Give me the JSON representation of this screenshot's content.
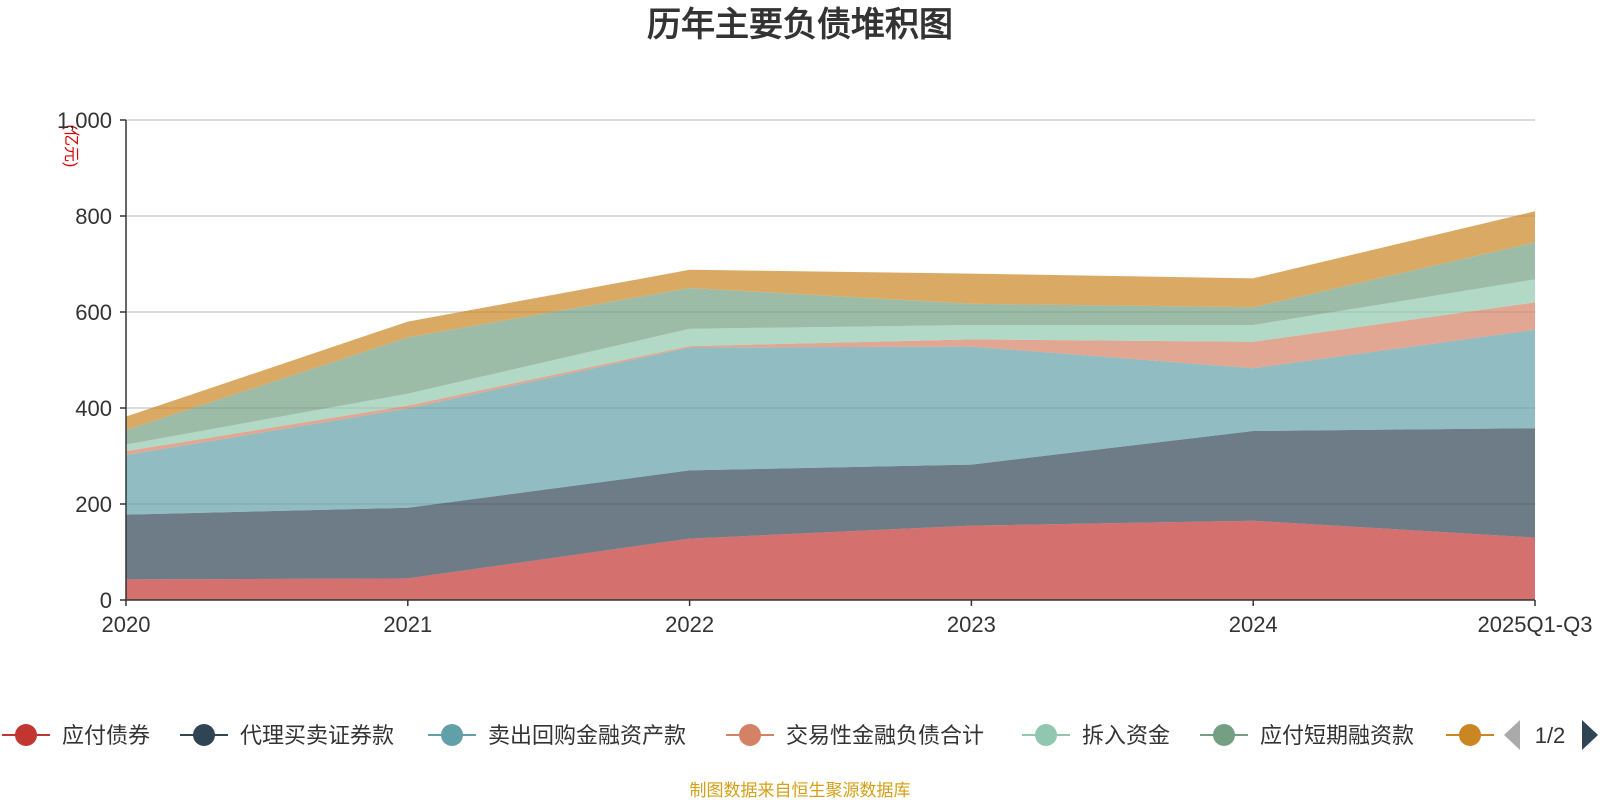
{
  "chart_data": {
    "type": "area",
    "stacked": true,
    "title": "历年主要负债堆积图",
    "ylabel": "(亿元)",
    "xlabel": "",
    "ylim": [
      0,
      1000
    ],
    "yticks": [
      0,
      200,
      400,
      600,
      800,
      1000
    ],
    "ytick_labels": [
      "0",
      "200",
      "400",
      "600",
      "800",
      "1,000"
    ],
    "categories": [
      "2020",
      "2021",
      "2022",
      "2023",
      "2024",
      "2025Q1-Q3"
    ],
    "grid": true,
    "legend_position": "bottom",
    "series": [
      {
        "name": "应付债券",
        "color": "#c23531",
        "values": [
          43,
          45,
          128,
          155,
          165,
          130
        ]
      },
      {
        "name": "代理买卖证券款",
        "color": "#2f4554",
        "values": [
          135,
          147,
          142,
          127,
          187,
          228
        ]
      },
      {
        "name": "卖出回购金融资产款",
        "color": "#61a0a8",
        "values": [
          124,
          207,
          256,
          246,
          131,
          205
        ]
      },
      {
        "name": "交易性金融负债合计",
        "color": "#d48265",
        "values": [
          8,
          6,
          3,
          15,
          55,
          57
        ]
      },
      {
        "name": "拆入资金",
        "color": "#91c7ae",
        "values": [
          14,
          25,
          36,
          30,
          35,
          48
        ]
      },
      {
        "name": "应付短期融资款",
        "color": "#749f83",
        "values": [
          30,
          117,
          85,
          44,
          37,
          77
        ]
      },
      {
        "name": "",
        "color": "#ca8622",
        "values": [
          28,
          33,
          38,
          63,
          60,
          65
        ]
      }
    ]
  },
  "legend": {
    "page_label": "1/2"
  },
  "source_text": "制图数据来自恒生聚源数据库"
}
